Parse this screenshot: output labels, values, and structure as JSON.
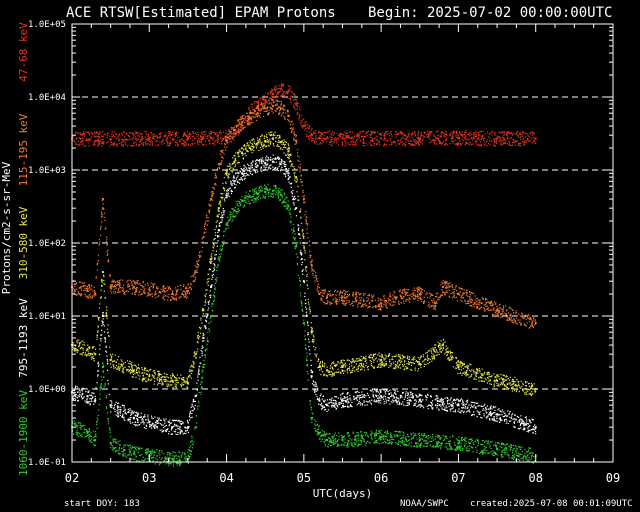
{
  "header": {
    "title": "ACE RTSW[Estimated] EPAM Protons",
    "begin": "Begin: 2025-07-02 00:00:00UTC"
  },
  "footer": {
    "start_doy": "start DOY:  183",
    "agency": "NOAA/SWPC",
    "created": "created:2025-07-08 00:01:09UTC"
  },
  "chart_data": {
    "type": "scatter",
    "title": "ACE RTSW[Estimated] EPAM Protons",
    "xlabel": "UTC(days)",
    "ylabel": "Protons/cm2-s-sr-MeV",
    "yscale": "log",
    "ylim": [
      0.1,
      100000
    ],
    "xlim": [
      2,
      9
    ],
    "x_ticks": [
      "02",
      "03",
      "04",
      "05",
      "06",
      "07",
      "08",
      "09"
    ],
    "y_ticks": [
      "1.0E-01",
      "1.0E+00",
      "1.0E+01",
      "1.0E+02",
      "1.0E+03",
      "1.0E+04",
      "1.0E+05"
    ],
    "grid": "dashed horizontal",
    "series": [
      {
        "name": "47-68 keV",
        "color": "#e8341c",
        "x": [
          2.0,
          2.5,
          3.0,
          3.5,
          3.8,
          4.0,
          4.1,
          4.2,
          4.3,
          4.4,
          4.5,
          4.6,
          4.7,
          4.8,
          4.9,
          5.0,
          5.1,
          5.2,
          5.5,
          6.0,
          6.5,
          7.0,
          7.5,
          8.0
        ],
        "y": [
          2700,
          2650,
          2700,
          2700,
          2750,
          2800,
          3200,
          4500,
          6000,
          7500,
          9000,
          11000,
          13000,
          12000,
          8000,
          4000,
          3000,
          2750,
          2700,
          2700,
          2700,
          2750,
          2700,
          2700
        ]
      },
      {
        "name": "115-195 keV",
        "color": "#f07a30",
        "x": [
          2.0,
          2.2,
          2.3,
          2.4,
          2.5,
          2.8,
          3.0,
          3.3,
          3.5,
          3.6,
          3.7,
          3.8,
          3.9,
          4.0,
          4.1,
          4.2,
          4.3,
          4.4,
          4.5,
          4.6,
          4.7,
          4.8,
          4.9,
          5.0,
          5.1,
          5.2,
          5.3,
          5.5,
          6.0,
          6.2,
          6.5,
          6.7,
          6.8,
          7.0,
          7.3,
          7.5,
          8.0
        ],
        "y": [
          25,
          22,
          20,
          400,
          25,
          25,
          23,
          20,
          22,
          40,
          120,
          400,
          1200,
          2500,
          3500,
          4500,
          5200,
          6000,
          7000,
          7500,
          7000,
          5500,
          2500,
          400,
          50,
          20,
          18,
          18,
          15,
          18,
          20,
          15,
          25,
          20,
          15,
          12,
          8
        ]
      },
      {
        "name": "310-580 keV",
        "color": "#e8e84a",
        "x": [
          2.0,
          2.2,
          2.3,
          2.4,
          2.5,
          2.8,
          3.0,
          3.3,
          3.5,
          3.6,
          3.7,
          3.8,
          3.9,
          4.0,
          4.1,
          4.2,
          4.3,
          4.4,
          4.5,
          4.6,
          4.7,
          4.8,
          4.9,
          5.0,
          5.1,
          5.2,
          5.3,
          5.5,
          6.0,
          6.5,
          6.8,
          7.0,
          7.5,
          8.0
        ],
        "y": [
          4,
          3.5,
          3,
          40,
          2.5,
          1.8,
          1.5,
          1.3,
          1.2,
          3,
          12,
          60,
          300,
          900,
          1300,
          1700,
          2000,
          2300,
          2500,
          2700,
          2400,
          1800,
          800,
          100,
          6,
          2,
          1.8,
          2,
          2.5,
          2.2,
          4,
          2,
          1.3,
          1
        ]
      },
      {
        "name": "795-1193 keV",
        "color": "#ffffff",
        "x": [
          2.0,
          2.2,
          2.3,
          2.4,
          2.5,
          2.8,
          3.0,
          3.3,
          3.5,
          3.6,
          3.7,
          3.8,
          3.9,
          4.0,
          4.1,
          4.2,
          4.3,
          4.4,
          4.5,
          4.6,
          4.7,
          4.8,
          4.9,
          5.0,
          5.1,
          5.2,
          5.3,
          5.5,
          6.0,
          6.5,
          7.0,
          7.5,
          8.0
        ],
        "y": [
          0.9,
          0.8,
          0.7,
          10,
          0.6,
          0.4,
          0.35,
          0.3,
          0.3,
          0.8,
          5,
          25,
          150,
          450,
          700,
          900,
          1050,
          1150,
          1250,
          1300,
          1200,
          900,
          300,
          30,
          1.5,
          0.7,
          0.6,
          0.7,
          0.8,
          0.7,
          0.6,
          0.45,
          0.3
        ]
      },
      {
        "name": "1060-1900 keV",
        "color": "#30d030",
        "x": [
          2.0,
          2.2,
          2.3,
          2.4,
          2.5,
          2.8,
          3.0,
          3.3,
          3.5,
          3.6,
          3.7,
          3.8,
          3.9,
          4.0,
          4.1,
          4.2,
          4.3,
          4.4,
          4.5,
          4.6,
          4.7,
          4.8,
          4.9,
          5.0,
          5.1,
          5.2,
          5.3,
          5.5,
          6.0,
          6.5,
          7.0,
          7.5,
          8.0
        ],
        "y": [
          0.3,
          0.25,
          0.2,
          2,
          0.18,
          0.13,
          0.12,
          0.11,
          0.11,
          0.3,
          2,
          10,
          60,
          180,
          280,
          380,
          430,
          470,
          500,
          520,
          460,
          320,
          90,
          8,
          0.4,
          0.25,
          0.2,
          0.2,
          0.22,
          0.2,
          0.18,
          0.15,
          0.12
        ]
      }
    ]
  }
}
